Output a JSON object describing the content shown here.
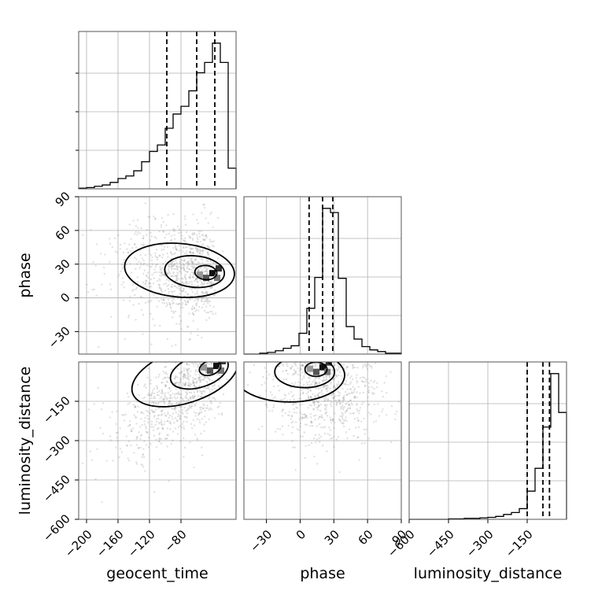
{
  "chart_data": {
    "type": "corner",
    "parameters": [
      {
        "key": "geocent_time",
        "label": "geocent_time",
        "range": [
          -210,
          -10
        ],
        "ticks": [
          -200,
          -160,
          -120,
          -80
        ]
      },
      {
        "key": "phase",
        "label": "phase",
        "range": [
          -50,
          90
        ],
        "ticks": [
          -30,
          0,
          30,
          60,
          90
        ]
      },
      {
        "key": "luminosity_distance",
        "label": "luminosity_distance",
        "range": [
          -600,
          0
        ],
        "ticks": [
          -600,
          -450,
          -300,
          -150
        ]
      }
    ],
    "histograms": [
      {
        "parameter": "geocent_time",
        "bin_edges": [
          -210,
          -200,
          -190,
          -180,
          -170,
          -160,
          -150,
          -140,
          -130,
          -120,
          -110,
          -100,
          -90,
          -80,
          -70,
          -60,
          -50,
          -40,
          -30,
          -20,
          -10
        ],
        "counts": [
          0.5,
          1,
          2,
          3,
          5,
          8,
          10,
          14,
          21,
          29,
          34,
          47,
          58,
          64,
          76,
          90,
          98,
          113,
          98,
          16
        ],
        "quantiles": [
          -98,
          -60,
          -37
        ]
      },
      {
        "parameter": "phase",
        "bin_edges": [
          -50,
          -43,
          -36,
          -29,
          -22,
          -15,
          -8,
          -1,
          6,
          13,
          20,
          27,
          34,
          41,
          48,
          55,
          62,
          69,
          76,
          83,
          90
        ],
        "counts": [
          0,
          0,
          1,
          2,
          4,
          7,
          10,
          25,
          55,
          92,
          175,
          170,
          91,
          33,
          18,
          9,
          5,
          3,
          1,
          1
        ],
        "quantiles": [
          8,
          20,
          29
        ]
      },
      {
        "parameter": "luminosity_distance",
        "bin_edges": [
          -600,
          -570,
          -540,
          -510,
          -480,
          -450,
          -420,
          -390,
          -360,
          -330,
          -300,
          -270,
          -240,
          -210,
          -180,
          -150,
          -120,
          -90,
          -60,
          -30,
          0
        ],
        "counts": [
          0,
          0,
          0,
          0,
          0,
          1,
          1,
          2,
          2,
          3,
          4,
          6,
          10,
          14,
          22,
          58,
          105,
          190,
          300,
          220
        ],
        "quantiles": [
          -150,
          -90,
          -65
        ]
      }
    ],
    "scatter_panels": [
      {
        "x": "geocent_time",
        "y": "phase",
        "density_peak": [
          -40,
          22
        ]
      },
      {
        "x": "geocent_time",
        "y": "luminosity_distance",
        "density_peak": [
          -35,
          -15
        ]
      },
      {
        "x": "phase",
        "y": "luminosity_distance",
        "density_peak": [
          20,
          -20
        ]
      }
    ],
    "quantile_line_style": "dashed",
    "grid": true
  }
}
